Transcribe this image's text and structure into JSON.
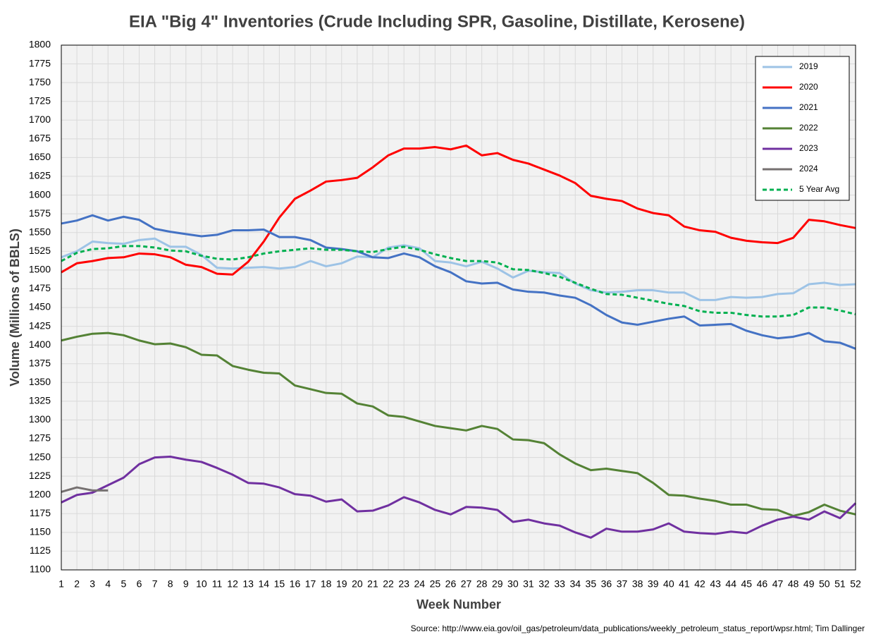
{
  "chart_data": {
    "type": "line",
    "title": "EIA \"Big 4\" Inventories (Crude Including SPR, Gasoline, Distillate, Kerosene)",
    "xlabel": "Week Number",
    "ylabel": "Volume (Millions of BBLS)",
    "source": "Source: http://www.eia.gov/oil_gas/petroleum/data_publications/weekly_petroleum_status_report/wpsr.html; Tim Dallinger",
    "x": [
      1,
      2,
      3,
      4,
      5,
      6,
      7,
      8,
      9,
      10,
      11,
      12,
      13,
      14,
      15,
      16,
      17,
      18,
      19,
      20,
      21,
      22,
      23,
      24,
      25,
      26,
      27,
      28,
      29,
      30,
      31,
      32,
      33,
      34,
      35,
      36,
      37,
      38,
      39,
      40,
      41,
      42,
      43,
      44,
      45,
      46,
      47,
      48,
      49,
      50,
      51,
      52
    ],
    "xlim": [
      1,
      52
    ],
    "xticks": [
      1,
      2,
      3,
      4,
      5,
      6,
      7,
      8,
      9,
      10,
      11,
      12,
      13,
      14,
      15,
      16,
      17,
      18,
      19,
      20,
      21,
      22,
      23,
      24,
      25,
      26,
      27,
      28,
      29,
      30,
      31,
      32,
      33,
      34,
      35,
      36,
      37,
      38,
      39,
      40,
      41,
      42,
      43,
      44,
      45,
      46,
      47,
      48,
      49,
      50,
      51,
      52
    ],
    "ylim": [
      1100,
      1800
    ],
    "yticks": [
      1100,
      1125,
      1150,
      1175,
      1200,
      1225,
      1250,
      1275,
      1300,
      1325,
      1350,
      1375,
      1400,
      1425,
      1450,
      1475,
      1500,
      1525,
      1550,
      1575,
      1600,
      1625,
      1650,
      1675,
      1700,
      1725,
      1750,
      1775,
      1800
    ],
    "grid": true,
    "legend": "upper right",
    "series": [
      {
        "name": "2019",
        "color": "#9dc3e6",
        "values": [
          1517,
          1525,
          1538,
          1536,
          1535,
          1540,
          1542,
          1531,
          1531,
          1520,
          1503,
          1502,
          1503,
          1504,
          1502,
          1504,
          1512,
          1505,
          1509,
          1518,
          1517,
          1530,
          1533,
          1529,
          1512,
          1510,
          1505,
          1511,
          1502,
          1490,
          1499,
          1497,
          1496,
          1482,
          1473,
          1470,
          1471,
          1473,
          1473,
          1470,
          1470,
          1460,
          1460,
          1464,
          1463,
          1464,
          1468,
          1469,
          1481,
          1483,
          1480,
          1481
        ]
      },
      {
        "name": "2020",
        "color": "#ff0000",
        "values": [
          1497,
          1509,
          1512,
          1516,
          1517,
          1522,
          1521,
          1517,
          1507,
          1504,
          1495,
          1494,
          1511,
          1538,
          1570,
          1595,
          1606,
          1618,
          1620,
          1623,
          1637,
          1653,
          1662,
          1662,
          1664,
          1661,
          1666,
          1653,
          1656,
          1647,
          1642,
          1634,
          1626,
          1616,
          1599,
          1595,
          1592,
          1582,
          1576,
          1573,
          1558,
          1553,
          1551,
          1543,
          1539,
          1537,
          1536,
          1543,
          1567,
          1565,
          1560,
          1556
        ]
      },
      {
        "name": "2021",
        "color": "#4472c4",
        "values": [
          1562,
          1566,
          1573,
          1566,
          1571,
          1567,
          1555,
          1551,
          1548,
          1545,
          1547,
          1553,
          1553,
          1554,
          1544,
          1544,
          1540,
          1530,
          1528,
          1525,
          1517,
          1516,
          1522,
          1517,
          1505,
          1497,
          1485,
          1482,
          1483,
          1474,
          1471,
          1470,
          1466,
          1463,
          1453,
          1440,
          1430,
          1427,
          1431,
          1435,
          1438,
          1426,
          1427,
          1428,
          1419,
          1413,
          1409,
          1411,
          1416,
          1405,
          1403,
          1395
        ]
      },
      {
        "name": "2022",
        "color": "#548235",
        "values": [
          1406,
          1411,
          1415,
          1416,
          1413,
          1406,
          1401,
          1402,
          1397,
          1387,
          1386,
          1372,
          1367,
          1363,
          1362,
          1346,
          1341,
          1336,
          1335,
          1322,
          1318,
          1306,
          1304,
          1298,
          1292,
          1289,
          1286,
          1292,
          1288,
          1274,
          1273,
          1269,
          1254,
          1242,
          1233,
          1235,
          1232,
          1229,
          1216,
          1200,
          1199,
          1195,
          1192,
          1187,
          1187,
          1181,
          1180,
          1172,
          1177,
          1187,
          1179,
          1174
        ]
      },
      {
        "name": "2023",
        "color": "#7030a0",
        "values": [
          1190,
          1200,
          1203,
          1213,
          1223,
          1241,
          1250,
          1251,
          1247,
          1244,
          1236,
          1227,
          1216,
          1215,
          1210,
          1201,
          1199,
          1191,
          1194,
          1178,
          1179,
          1186,
          1197,
          1190,
          1180,
          1174,
          1184,
          1183,
          1180,
          1164,
          1167,
          1162,
          1159,
          1150,
          1143,
          1155,
          1151,
          1151,
          1154,
          1162,
          1151,
          1149,
          1148,
          1151,
          1149,
          1159,
          1167,
          1171,
          1167,
          1178,
          1169,
          1189
        ]
      },
      {
        "name": "2024",
        "color": "#767171",
        "values": [
          1204,
          1210,
          1206,
          1206,
          null,
          null,
          null,
          null,
          null,
          null,
          null,
          null,
          null,
          null,
          null,
          null,
          null,
          null,
          null,
          null,
          null,
          null,
          null,
          null,
          null,
          null,
          null,
          null,
          null,
          null,
          null,
          null,
          null,
          null,
          null,
          null,
          null,
          null,
          null,
          null,
          null,
          null,
          null,
          null,
          null,
          null,
          null,
          null,
          null,
          null,
          null,
          null
        ]
      },
      {
        "name": "5 Year Avg",
        "color": "#00b050",
        "dash": true,
        "values": [
          1512,
          1523,
          1528,
          1529,
          1532,
          1532,
          1530,
          1526,
          1525,
          1519,
          1515,
          1514,
          1517,
          1522,
          1525,
          1527,
          1529,
          1527,
          1527,
          1525,
          1524,
          1528,
          1531,
          1527,
          1521,
          1516,
          1512,
          1512,
          1510,
          1501,
          1500,
          1496,
          1491,
          1483,
          1475,
          1468,
          1467,
          1463,
          1459,
          1455,
          1452,
          1445,
          1443,
          1443,
          1440,
          1438,
          1438,
          1440,
          1450,
          1450,
          1446,
          1441
        ]
      }
    ]
  }
}
